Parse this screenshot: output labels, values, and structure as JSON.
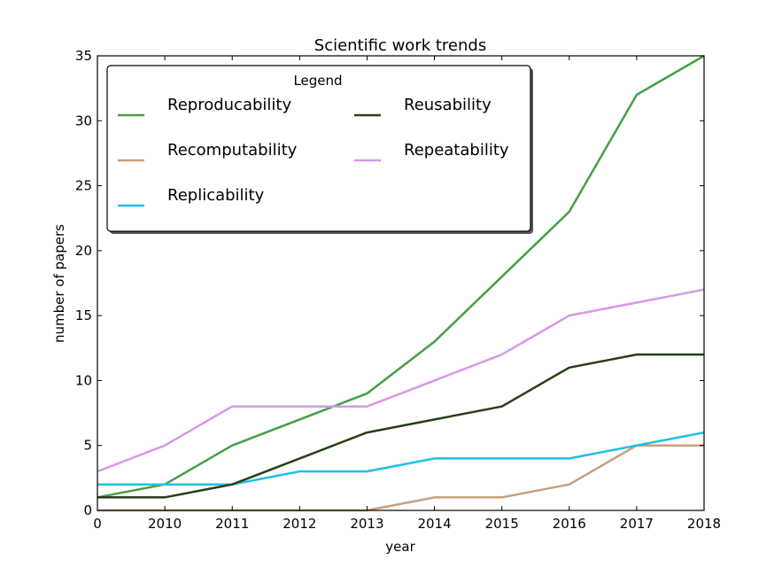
{
  "chart_data": {
    "type": "line",
    "title": "Scientific work trends",
    "xlabel": "year",
    "ylabel": "number of papers",
    "x_tick_labels": [
      "0",
      "2010",
      "2011",
      "2012",
      "2013",
      "2014",
      "2015",
      "2016",
      "2017",
      "2018"
    ],
    "ylim": [
      0,
      35
    ],
    "y_ticks": [
      0,
      5,
      10,
      15,
      20,
      25,
      30,
      35
    ],
    "grid": false,
    "legend": {
      "title": "Legend",
      "placement": "top-left",
      "columns": 2
    },
    "series": [
      {
        "name": "Reproducability",
        "color": "#43a047",
        "values": [
          1,
          2,
          5,
          7,
          9,
          13,
          18,
          23,
          32,
          35
        ]
      },
      {
        "name": "Recomputability",
        "color": "#c8a07c",
        "values": [
          0,
          0,
          0,
          0,
          0,
          1,
          1,
          2,
          5,
          5
        ]
      },
      {
        "name": "Replicability",
        "color": "#1ec0e6",
        "values": [
          2,
          2,
          2,
          3,
          3,
          4,
          4,
          4,
          5,
          6
        ]
      },
      {
        "name": "Reusability",
        "color": "#263f18",
        "values": [
          1,
          1,
          2,
          4,
          6,
          7,
          8,
          11,
          12,
          12
        ]
      },
      {
        "name": "Repeatability",
        "color": "#d897e8",
        "values": [
          3,
          5,
          8,
          8,
          8,
          10,
          12,
          15,
          16,
          17
        ]
      }
    ]
  }
}
